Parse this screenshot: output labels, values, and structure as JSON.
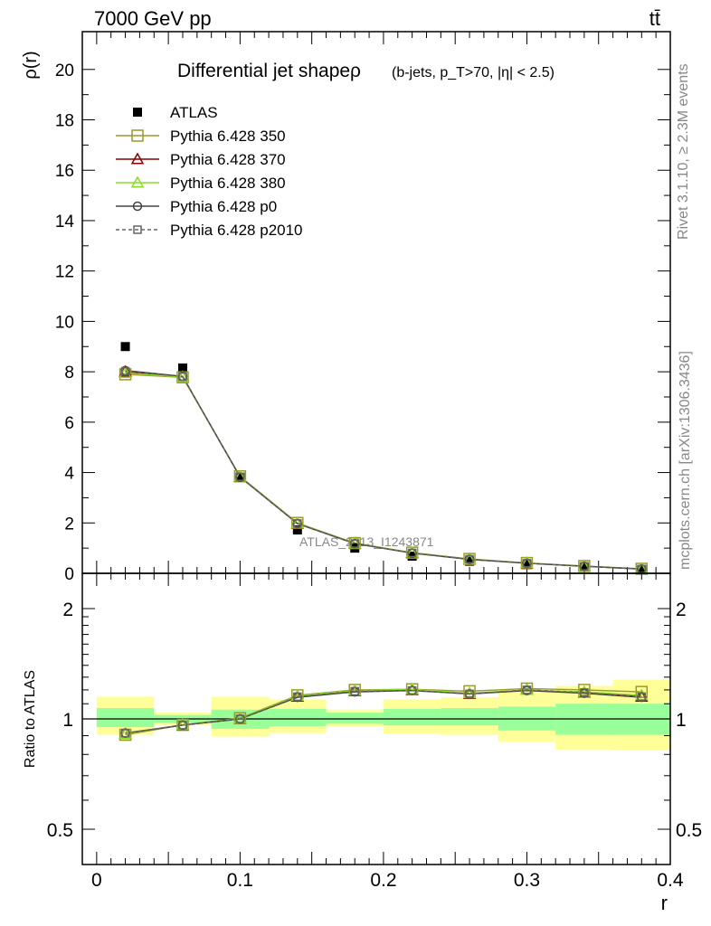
{
  "header": {
    "energy_label": "7000 GeV pp",
    "process_label": "tt̄"
  },
  "side_labels": {
    "rivet": "Rivet 3.1.10, ≥ 2.3M events",
    "mcplots": "mcplots.cern.ch [arXiv:1306.3436]"
  },
  "watermark": "ATLAS_2013_I1243871",
  "colors": {
    "atlas": "#000000",
    "p350": "#9a9a2a",
    "p370": "#8b0000",
    "p380": "#88dd22",
    "p0": "#444444",
    "p2010": "#666666",
    "band_inner": "#99ff99",
    "band_outer": "#ffff99"
  },
  "chart_data": [
    {
      "type": "line",
      "title": "Differential jet shapeρ",
      "subtitle": "(b-jets, p_T>70, |η| < 2.5)",
      "ylabel": "ρ(r)",
      "xlim": [
        -0.01,
        0.4
      ],
      "ylim": [
        0,
        21.5
      ],
      "yticks": [
        0,
        2,
        4,
        6,
        8,
        10,
        12,
        14,
        16,
        18,
        20
      ],
      "bin_edges": [
        0.0,
        0.04,
        0.08,
        0.12,
        0.16,
        0.2,
        0.24,
        0.28,
        0.32,
        0.36,
        0.4
      ],
      "x": [
        0.02,
        0.06,
        0.1,
        0.14,
        0.18,
        0.22,
        0.26,
        0.3,
        0.34,
        0.38
      ],
      "legend_position": "top-left",
      "series": [
        {
          "key": "atlas",
          "name": "ATLAS",
          "marker": "filled-square",
          "values": [
            9.0,
            8.15,
            3.82,
            1.72,
            1.0,
            0.68,
            0.48,
            0.34,
            0.24,
            0.15
          ]
        },
        {
          "key": "p350",
          "name": "Pythia 6.428 350",
          "marker": "open-square",
          "values": [
            7.9,
            7.78,
            3.85,
            2.0,
            1.2,
            0.82,
            0.57,
            0.41,
            0.29,
            0.18
          ]
        },
        {
          "key": "p370",
          "name": "Pythia 6.428 370",
          "marker": "open-triangle",
          "values": [
            8.0,
            7.8,
            3.83,
            1.98,
            1.19,
            0.81,
            0.56,
            0.4,
            0.28,
            0.17
          ]
        },
        {
          "key": "p380",
          "name": "Pythia 6.428 380",
          "marker": "open-triangle",
          "values": [
            7.95,
            7.79,
            3.84,
            1.99,
            1.19,
            0.82,
            0.56,
            0.41,
            0.28,
            0.17
          ]
        },
        {
          "key": "p0",
          "name": "Pythia 6.428 p0",
          "marker": "open-circle",
          "values": [
            8.05,
            7.82,
            3.82,
            1.97,
            1.18,
            0.8,
            0.55,
            0.4,
            0.28,
            0.17
          ]
        },
        {
          "key": "p2010",
          "name": "Pythia 6.428 p2010",
          "marker": "open-square-dashed",
          "values": [
            8.02,
            7.81,
            3.83,
            1.98,
            1.18,
            0.81,
            0.56,
            0.4,
            0.28,
            0.17
          ]
        }
      ]
    },
    {
      "type": "line",
      "xlabel": "r",
      "ylabel": "Ratio to ATLAS",
      "xlim": [
        -0.01,
        0.4
      ],
      "ylim": [
        0.4,
        2.3
      ],
      "yscale": "log",
      "yticks": [
        0.5,
        1,
        2
      ],
      "xticks": [
        0,
        0.1,
        0.2,
        0.3,
        0.4
      ],
      "bin_edges": [
        0.0,
        0.04,
        0.08,
        0.12,
        0.16,
        0.2,
        0.24,
        0.28,
        0.32,
        0.36,
        0.4
      ],
      "band_inner": [
        [
          0.95,
          1.07
        ],
        [
          0.975,
          1.025
        ],
        [
          0.94,
          1.06
        ],
        [
          0.955,
          1.065
        ],
        [
          0.97,
          1.04
        ],
        [
          0.96,
          1.065
        ],
        [
          0.96,
          1.07
        ],
        [
          0.93,
          1.08
        ],
        [
          0.905,
          1.1
        ],
        [
          0.905,
          1.1
        ]
      ],
      "band_outer": [
        [
          0.905,
          1.15
        ],
        [
          0.96,
          1.04
        ],
        [
          0.895,
          1.15
        ],
        [
          0.915,
          1.13
        ],
        [
          0.955,
          1.06
        ],
        [
          0.91,
          1.13
        ],
        [
          0.905,
          1.145
        ],
        [
          0.865,
          1.2
        ],
        [
          0.825,
          1.23
        ],
        [
          0.82,
          1.28
        ]
      ],
      "x": [
        0.02,
        0.06,
        0.1,
        0.14,
        0.18,
        0.22,
        0.26,
        0.3,
        0.34,
        0.38
      ],
      "series": [
        {
          "key": "p350",
          "name": "Pythia 6.428 350",
          "marker": "open-square",
          "values": [
            0.905,
            0.963,
            1.005,
            1.16,
            1.2,
            1.205,
            1.19,
            1.21,
            1.2,
            1.185
          ]
        },
        {
          "key": "p370",
          "name": "Pythia 6.428 370",
          "marker": "open-triangle",
          "values": [
            0.91,
            0.962,
            1.0,
            1.15,
            1.19,
            1.2,
            1.17,
            1.2,
            1.18,
            1.15
          ]
        },
        {
          "key": "p380",
          "name": "Pythia 6.428 380",
          "marker": "open-triangle",
          "values": [
            0.91,
            0.963,
            1.002,
            1.155,
            1.195,
            1.205,
            1.175,
            1.2,
            1.185,
            1.16
          ]
        },
        {
          "key": "p0",
          "name": "Pythia 6.428 p0",
          "marker": "open-circle",
          "values": [
            0.915,
            0.962,
            1.0,
            1.145,
            1.185,
            1.195,
            1.17,
            1.195,
            1.175,
            1.145
          ]
        },
        {
          "key": "p2010",
          "name": "Pythia 6.428 p2010",
          "marker": "open-square-dashed",
          "values": [
            0.915,
            0.962,
            1.0,
            1.15,
            1.19,
            1.195,
            1.17,
            1.2,
            1.18,
            1.15
          ]
        }
      ]
    }
  ]
}
